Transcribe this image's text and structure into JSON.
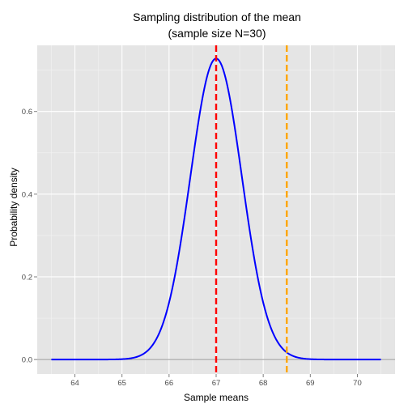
{
  "chart_data": {
    "type": "line",
    "title": "Sampling distribution of the mean",
    "subtitle": "(sample size N=30)",
    "xlabel": "Sample means",
    "ylabel": "Probability density",
    "xlim": [
      63.2,
      70.8
    ],
    "ylim": [
      -0.035,
      0.76
    ],
    "x_ticks": [
      64,
      65,
      66,
      67,
      68,
      69,
      70
    ],
    "y_ticks": [
      0.0,
      0.2,
      0.4,
      0.6
    ],
    "y_tick_labels": [
      "0.0",
      "0.2",
      "0.4",
      "0.6"
    ],
    "grid": true,
    "panel_background": "#e5e5e5",
    "series": [
      {
        "color": "#0000ff",
        "x_range": [
          63.5,
          70.5
        ],
        "distribution": "normal",
        "mean": 67.0,
        "sd": 0.548,
        "peak_density": 0.728
      }
    ],
    "vlines": [
      {
        "x": 67.0,
        "color": "#ff0000",
        "style": "dashed"
      },
      {
        "x": 68.5,
        "color": "#ffa500",
        "style": "dashed"
      }
    ],
    "hline": {
      "y": 0.0,
      "color": "#999999"
    }
  }
}
